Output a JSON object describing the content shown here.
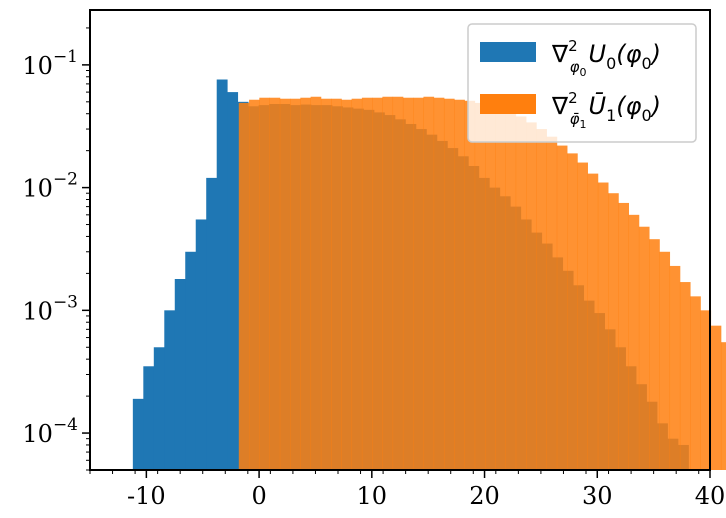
{
  "chart_data": {
    "type": "bar",
    "x_scale": "linear",
    "y_scale": "log",
    "xlim": [
      -15,
      40
    ],
    "ylim": [
      5e-05,
      0.28
    ],
    "xticks": [
      -10,
      0,
      10,
      20,
      30,
      40
    ],
    "xtick_labels": [
      "-10",
      "0",
      "10",
      "20",
      "30",
      "40"
    ],
    "yticks": [
      0.0001,
      0.001,
      0.01,
      0.1
    ],
    "ytick_labels": [
      {
        "base": "10",
        "exp": "−4"
      },
      {
        "base": "10",
        "exp": "−3"
      },
      {
        "base": "10",
        "exp": "−2"
      },
      {
        "base": "10",
        "exp": "−1"
      }
    ],
    "legend": {
      "position": "top-right"
    },
    "series": [
      {
        "name": "∇²φ₀U₀(φ₀)",
        "legend_parts": {
          "nabla": "∇",
          "sup": "2",
          "sub_main": "φ",
          "sub_sub": "0",
          "body_pre": "U",
          "body_sub": "0",
          "body_post": "(φ",
          "body_sub2": "0",
          "body_end": ")"
        },
        "color": "#1f77b4",
        "bin_start": -11.2,
        "bin_width": 0.93,
        "values": [
          0.00019,
          0.00035,
          0.0005,
          0.001,
          0.0018,
          0.003,
          0.0055,
          0.012,
          0.076,
          0.06,
          0.05,
          0.046,
          0.047,
          0.048,
          0.048,
          0.047,
          0.0475,
          0.047,
          0.047,
          0.046,
          0.045,
          0.044,
          0.043,
          0.041,
          0.039,
          0.036,
          0.033,
          0.03,
          0.027,
          0.024,
          0.021,
          0.018,
          0.015,
          0.012,
          0.01,
          0.0085,
          0.007,
          0.0055,
          0.0043,
          0.0035,
          0.0027,
          0.0021,
          0.0016,
          0.0012,
          0.00095,
          0.0007,
          0.0005,
          0.00035,
          0.00025,
          0.00018,
          0.00012,
          9e-05,
          8e-05
        ]
      },
      {
        "name": "∇²φ̄₁Ū₁(φ₀)",
        "legend_parts": {
          "nabla": "∇",
          "sup": "2",
          "sub_main": "φ̄",
          "sub_sub": "1",
          "body_pre": "Ū",
          "body_sub": "1",
          "body_post": "(φ",
          "body_sub2": "0",
          "body_end": ")"
        },
        "color": "#ff7f0e",
        "bin_start": -1.8,
        "bin_width": 0.91,
        "values": [
          0.049,
          0.052,
          0.054,
          0.054,
          0.053,
          0.053,
          0.054,
          0.055,
          0.053,
          0.053,
          0.052,
          0.053,
          0.054,
          0.054,
          0.055,
          0.055,
          0.054,
          0.054,
          0.055,
          0.054,
          0.053,
          0.052,
          0.051,
          0.049,
          0.047,
          0.044,
          0.041,
          0.038,
          0.034,
          0.03,
          0.026,
          0.022,
          0.019,
          0.016,
          0.013,
          0.011,
          0.009,
          0.0075,
          0.006,
          0.0048,
          0.0038,
          0.003,
          0.0023,
          0.0017,
          0.0013,
          0.001,
          0.00075,
          0.00055,
          0.0004,
          0.0002,
          0.00012,
          8e-05
        ]
      }
    ]
  }
}
